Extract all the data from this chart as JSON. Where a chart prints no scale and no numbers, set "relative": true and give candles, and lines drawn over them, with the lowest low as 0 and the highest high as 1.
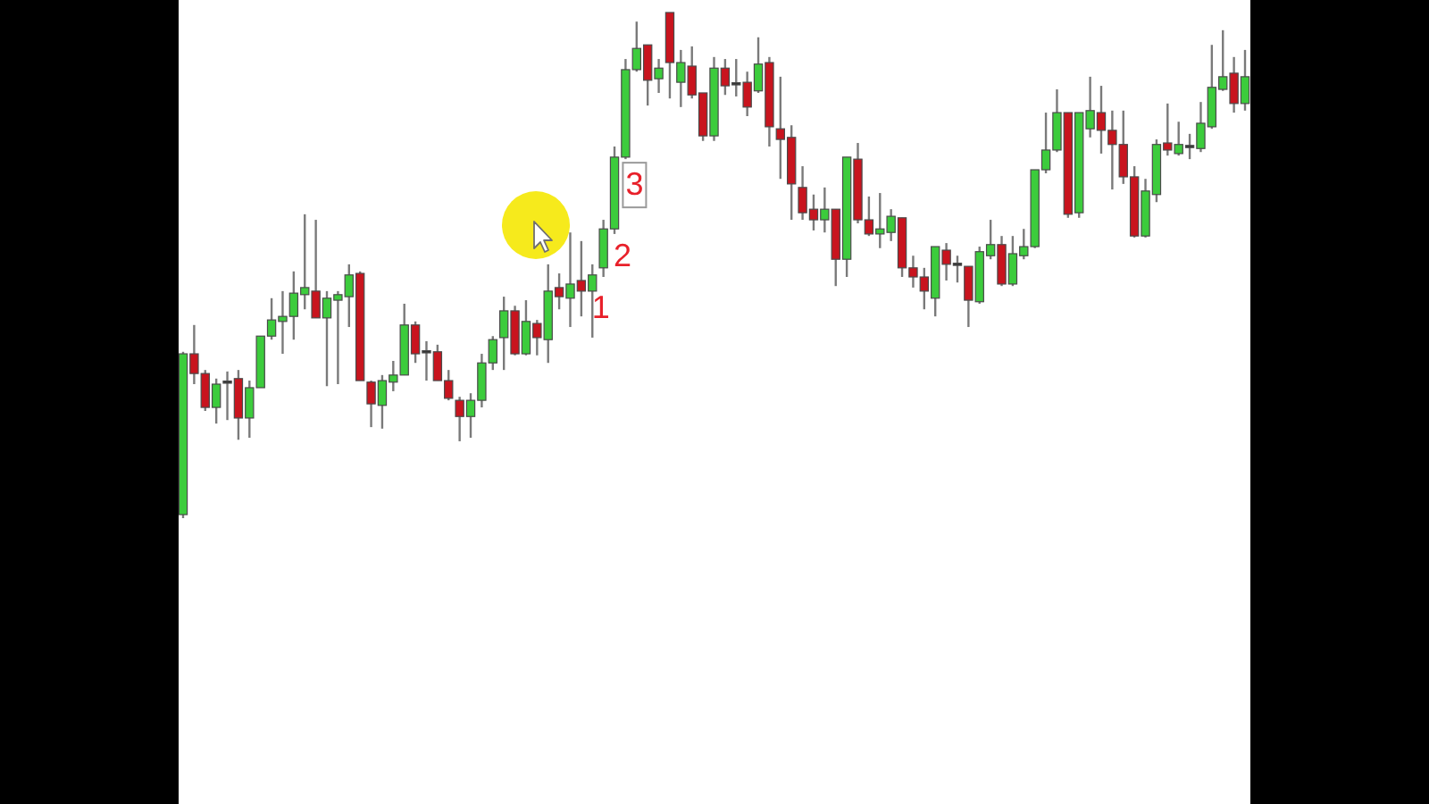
{
  "chart_data": {
    "type": "candlestick",
    "relative": true,
    "categories": [
      null,
      null,
      null,
      null,
      null,
      null,
      null,
      null,
      null,
      null,
      null,
      null,
      null,
      null,
      null,
      null,
      null,
      null,
      null,
      null,
      null,
      null,
      null,
      null,
      null,
      null,
      null,
      null,
      null,
      null,
      null,
      null,
      null,
      null,
      null,
      null,
      null,
      null,
      null,
      null,
      null,
      null,
      null,
      null,
      null,
      null,
      null,
      null,
      null,
      null,
      null,
      null,
      null,
      null,
      null,
      null,
      null,
      null,
      null,
      null,
      null,
      null,
      null,
      null,
      null,
      null,
      null,
      null,
      null,
      null,
      null,
      null,
      null,
      null,
      null,
      null,
      null,
      null,
      null,
      null,
      null,
      null,
      null,
      null,
      null,
      null,
      null,
      null,
      null,
      null,
      null,
      null,
      null,
      null,
      null,
      null,
      null
    ],
    "ohlc": [
      [
        0.007,
        0.329,
        0,
        0.325
      ],
      [
        0.325,
        0.382,
        0.265,
        0.286
      ],
      [
        0.286,
        0.293,
        0.212,
        0.219
      ],
      [
        0.219,
        0.276,
        0.187,
        0.265
      ],
      [
        0.269,
        0.29,
        0.194,
        0.269
      ],
      [
        0.276,
        0.293,
        0.155,
        0.198
      ],
      [
        0.198,
        0.272,
        0.159,
        0.258
      ],
      [
        0.258,
        0.36,
        0.258,
        0.36
      ],
      [
        0.36,
        0.435,
        0.353,
        0.392
      ],
      [
        0.389,
        0.449,
        0.325,
        0.399
      ],
      [
        0.399,
        0.488,
        0.353,
        0.445
      ],
      [
        0.442,
        0.601,
        0.413,
        0.456
      ],
      [
        0.449,
        0.59,
        0.396,
        0.396
      ],
      [
        0.396,
        0.449,
        0.261,
        0.435
      ],
      [
        0.431,
        0.449,
        0.265,
        0.442
      ],
      [
        0.438,
        0.502,
        0.378,
        0.481
      ],
      [
        0.484,
        0.488,
        0.272,
        0.272
      ],
      [
        0.269,
        0.272,
        0.18,
        0.226
      ],
      [
        0.223,
        0.283,
        0.177,
        0.272
      ],
      [
        0.269,
        0.311,
        0.251,
        0.283
      ],
      [
        0.283,
        0.424,
        0.283,
        0.382
      ],
      [
        0.382,
        0.389,
        0.307,
        0.325
      ],
      [
        0.329,
        0.35,
        0.272,
        0.329
      ],
      [
        0.329,
        0.343,
        0.272,
        0.272
      ],
      [
        0.272,
        0.293,
        0.233,
        0.237
      ],
      [
        0.233,
        0.24,
        0.152,
        0.201
      ],
      [
        0.201,
        0.247,
        0.159,
        0.233
      ],
      [
        0.233,
        0.325,
        0.219,
        0.307
      ],
      [
        0.307,
        0.36,
        0.293,
        0.353
      ],
      [
        0.357,
        0.438,
        0.293,
        0.41
      ],
      [
        0.41,
        0.42,
        0.322,
        0.325
      ],
      [
        0.325,
        0.431,
        0.322,
        0.389
      ],
      [
        0.385,
        0.392,
        0.322,
        0.357
      ],
      [
        0.353,
        0.502,
        0.307,
        0.449
      ],
      [
        0.456,
        0.484,
        0.413,
        0.438
      ],
      [
        0.435,
        0.565,
        0.378,
        0.463
      ],
      [
        0.47,
        0.548,
        0.399,
        0.449
      ],
      [
        0.449,
        0.502,
        0.357,
        0.481
      ],
      [
        0.495,
        0.59,
        0.477,
        0.572
      ],
      [
        0.572,
        0.735,
        0.562,
        0.714
      ],
      [
        0.714,
        0.908,
        0.71,
        0.887
      ],
      [
        0.887,
        0.982,
        0.883,
        0.929
      ],
      [
        0.936,
        0.936,
        0.816,
        0.866
      ],
      [
        0.869,
        0.908,
        0.841,
        0.89
      ],
      [
        1,
        1,
        0.83,
        0.901
      ],
      [
        0.862,
        0.926,
        0.813,
        0.901
      ],
      [
        0.894,
        0.933,
        0.83,
        0.837
      ],
      [
        0.841,
        0.841,
        0.746,
        0.756
      ],
      [
        0.756,
        0.912,
        0.746,
        0.89
      ],
      [
        0.89,
        0.908,
        0.837,
        0.855
      ],
      [
        0.859,
        0.908,
        0.834,
        0.859
      ],
      [
        0.862,
        0.883,
        0.795,
        0.813
      ],
      [
        0.845,
        0.951,
        0.841,
        0.898
      ],
      [
        0.901,
        0.912,
        0.735,
        0.774
      ],
      [
        0.77,
        0.873,
        0.671,
        0.749
      ],
      [
        0.753,
        0.777,
        0.59,
        0.661
      ],
      [
        0.654,
        0.696,
        0.59,
        0.604
      ],
      [
        0.611,
        0.64,
        0.569,
        0.59
      ],
      [
        0.59,
        0.654,
        0.565,
        0.611
      ],
      [
        0.611,
        0.611,
        0.459,
        0.512
      ],
      [
        0.512,
        0.714,
        0.477,
        0.714
      ],
      [
        0.71,
        0.742,
        0.583,
        0.59
      ],
      [
        0.59,
        0.636,
        0.558,
        0.562
      ],
      [
        0.562,
        0.643,
        0.534,
        0.572
      ],
      [
        0.565,
        0.611,
        0.548,
        0.597
      ],
      [
        0.594,
        0.594,
        0.477,
        0.495
      ],
      [
        0.495,
        0.519,
        0.456,
        0.477
      ],
      [
        0.477,
        0.495,
        0.413,
        0.449
      ],
      [
        0.435,
        0.537,
        0.399,
        0.537
      ],
      [
        0.53,
        0.544,
        0.47,
        0.502
      ],
      [
        0.502,
        0.519,
        0.466,
        0.502
      ],
      [
        0.498,
        0.498,
        0.378,
        0.431
      ],
      [
        0.428,
        0.537,
        0.424,
        0.527
      ],
      [
        0.519,
        0.59,
        0.512,
        0.541
      ],
      [
        0.541,
        0.558,
        0.459,
        0.463
      ],
      [
        0.463,
        0.558,
        0.459,
        0.523
      ],
      [
        0.519,
        0.572,
        0.512,
        0.537
      ],
      [
        0.537,
        0.689,
        0.534,
        0.689
      ],
      [
        0.689,
        0.802,
        0.682,
        0.728
      ],
      [
        0.728,
        0.848,
        0.724,
        0.802
      ],
      [
        0.802,
        0.802,
        0.594,
        0.601
      ],
      [
        0.604,
        0.802,
        0.594,
        0.802
      ],
      [
        0.77,
        0.873,
        0.753,
        0.806
      ],
      [
        0.802,
        0.855,
        0.721,
        0.767
      ],
      [
        0.767,
        0.806,
        0.65,
        0.739
      ],
      [
        0.739,
        0.806,
        0.661,
        0.675
      ],
      [
        0.675,
        0.696,
        0.555,
        0.558
      ],
      [
        0.558,
        0.671,
        0.555,
        0.647
      ],
      [
        0.64,
        0.749,
        0.625,
        0.739
      ],
      [
        0.742,
        0.82,
        0.717,
        0.728
      ],
      [
        0.721,
        0.784,
        0.717,
        0.739
      ],
      [
        0.735,
        0.76,
        0.71,
        0.735
      ],
      [
        0.731,
        0.823,
        0.724,
        0.781
      ],
      [
        0.774,
        0.936,
        0.77,
        0.852
      ],
      [
        0.848,
        0.965,
        0.845,
        0.873
      ],
      [
        0.88,
        0.912,
        0.802,
        0.82
      ],
      [
        0.82,
        0.926,
        0.806,
        0.873
      ]
    ],
    "colors": [
      "#3ccc3c",
      "#c8141e",
      "#c8141e",
      "#3ccc3c",
      "#333333",
      "#c8141e",
      "#3ccc3c",
      "#3ccc3c",
      "#3ccc3c",
      "#3ccc3c",
      "#3ccc3c",
      "#3ccc3c",
      "#c8141e",
      "#3ccc3c",
      "#3ccc3c",
      "#3ccc3c",
      "#c8141e",
      "#c8141e",
      "#3ccc3c",
      "#3ccc3c",
      "#3ccc3c",
      "#c8141e",
      "#333333",
      "#c8141e",
      "#c8141e",
      "#c8141e",
      "#3ccc3c",
      "#3ccc3c",
      "#3ccc3c",
      "#3ccc3c",
      "#c8141e",
      "#3ccc3c",
      "#c8141e",
      "#3ccc3c",
      "#c8141e",
      "#3ccc3c",
      "#c8141e",
      "#3ccc3c",
      "#3ccc3c",
      "#3ccc3c",
      "#3ccc3c",
      "#3ccc3c",
      "#c8141e",
      "#3ccc3c",
      "#c8141e",
      "#3ccc3c",
      "#c8141e",
      "#c8141e",
      "#3ccc3c",
      "#c8141e",
      "#333333",
      "#c8141e",
      "#3ccc3c",
      "#c8141e",
      "#c8141e",
      "#c8141e",
      "#c8141e",
      "#c8141e",
      "#3ccc3c",
      "#c8141e",
      "#3ccc3c",
      "#c8141e",
      "#c8141e",
      "#3ccc3c",
      "#3ccc3c",
      "#c8141e",
      "#c8141e",
      "#c8141e",
      "#3ccc3c",
      "#c8141e",
      "#333333",
      "#c8141e",
      "#3ccc3c",
      "#3ccc3c",
      "#c8141e",
      "#3ccc3c",
      "#3ccc3c",
      "#3ccc3c",
      "#3ccc3c",
      "#3ccc3c",
      "#c8141e",
      "#3ccc3c",
      "#3ccc3c",
      "#c8141e",
      "#c8141e",
      "#c8141e",
      "#c8141e",
      "#3ccc3c",
      "#3ccc3c",
      "#c8141e",
      "#3ccc3c",
      "#333333",
      "#3ccc3c",
      "#3ccc3c",
      "#3ccc3c",
      "#c8141e",
      "#3ccc3c"
    ],
    "annotations": [
      "1",
      "2",
      "3"
    ]
  }
}
